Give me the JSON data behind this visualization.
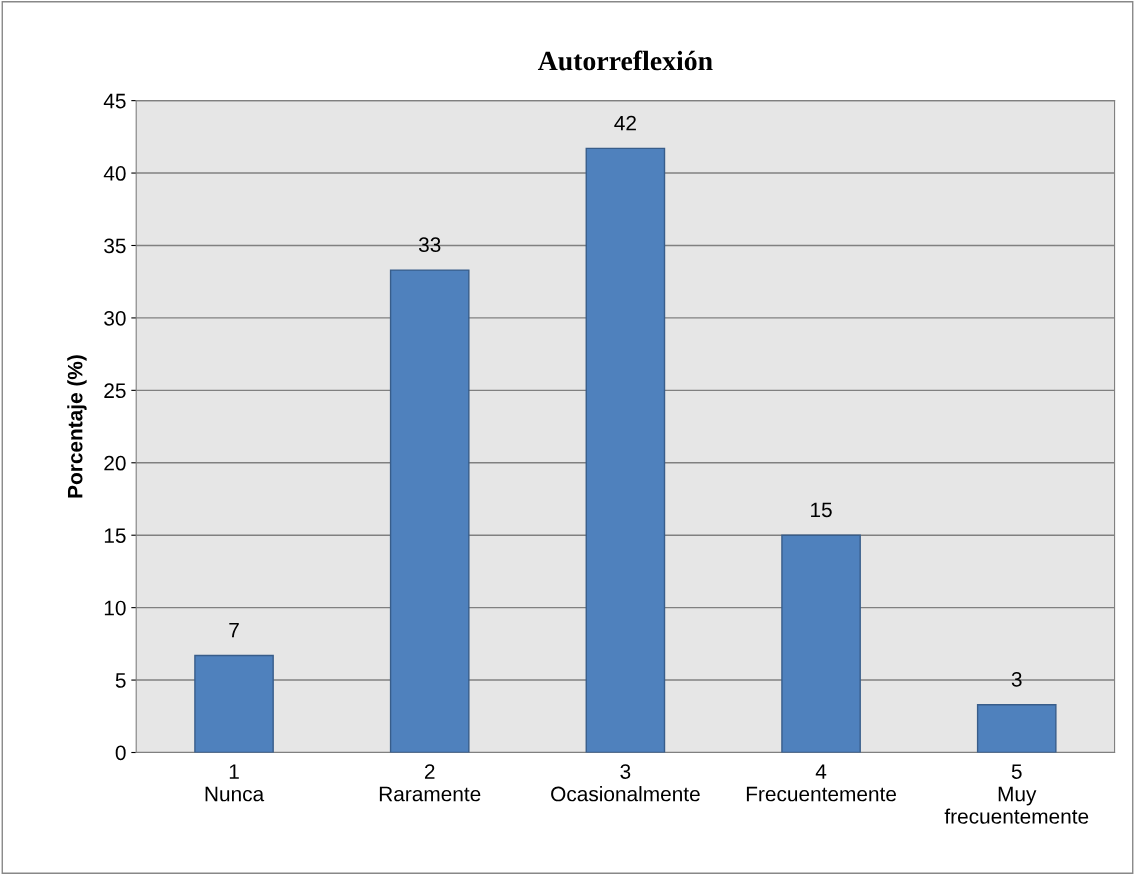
{
  "chart_data": {
    "type": "bar",
    "title": "Autorreflexión",
    "ylabel": "Porcentaje (%)",
    "categories": [
      "1\nNunca",
      "2\nRaramente",
      "3\nOcasionalmente",
      "4\nFrecuentemente",
      "5\nMuy\nfrecuentemente"
    ],
    "values": [
      6.7,
      33.3,
      41.7,
      15,
      3.3
    ],
    "value_labels": [
      "7",
      "33",
      "42",
      "15",
      "3"
    ],
    "color": "#4f81bd",
    "ylim": [
      0,
      45
    ],
    "yticks": [
      0,
      5,
      10,
      15,
      20,
      25,
      30,
      35,
      40,
      45
    ],
    "grid": "y",
    "legend": false
  }
}
